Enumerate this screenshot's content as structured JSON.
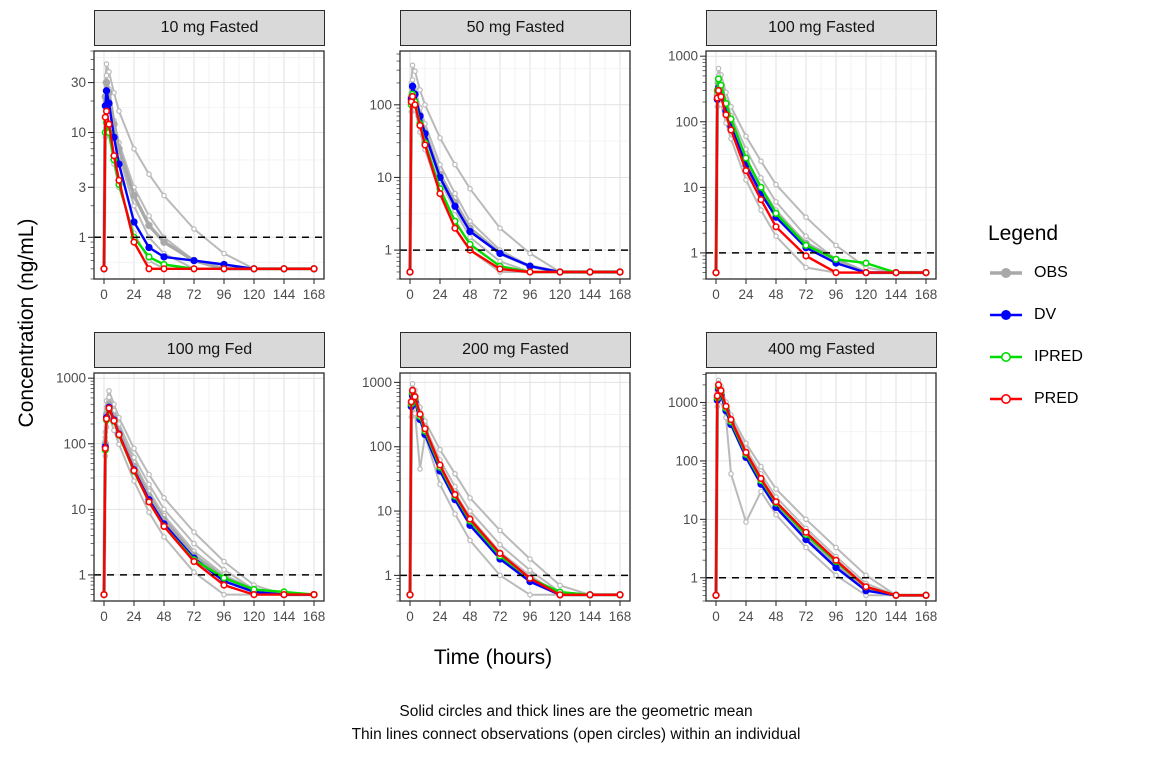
{
  "figure": {
    "y_axis_label": "Concentration (ng/mL)",
    "x_axis_label": "Time (hours)",
    "caption_line1": "Solid circles and thick lines are the geometric mean",
    "caption_line2": "Thin lines connect observations (open circles) within an individual",
    "legend": {
      "title": "Legend",
      "items": [
        {
          "label": "OBS",
          "color": "#a9a9a9",
          "solid": true
        },
        {
          "label": "DV",
          "color": "#0000ff",
          "solid": true
        },
        {
          "label": "IPRED",
          "color": "#00dd00",
          "solid": false
        },
        {
          "label": "PRED",
          "color": "#ff0000",
          "solid": false
        }
      ]
    }
  },
  "chart_data": {
    "type": "line",
    "xlabel": "Time (hours)",
    "ylabel": "Concentration (ng/mL)",
    "log_y": true,
    "grid": true,
    "legend_position": "right",
    "reference_line_y": 1,
    "x": [
      0,
      1,
      2,
      4,
      8,
      12,
      24,
      36,
      48,
      72,
      96,
      120,
      144,
      168
    ],
    "x_ticks": [
      0,
      24,
      48,
      72,
      96,
      120,
      144,
      168
    ],
    "xlim": [
      -8,
      176
    ],
    "series_colors": {
      "OBS": "#a9a9a9",
      "OBS_individual": "#bababa",
      "DV": "#0000ff",
      "IPRED": "#00dd00",
      "PRED": "#ff0000"
    },
    "facets": [
      {
        "title": "10 mg Fasted",
        "y_ticks": [
          1,
          3,
          10,
          30
        ],
        "ylim": [
          0.4,
          60
        ],
        "mean_series": {
          "OBS": [
            0.5,
            22,
            30,
            24,
            12,
            7,
            2.5,
            1.3,
            0.9,
            0.6,
            0.5,
            0.5,
            0.5,
            0.5
          ],
          "DV": [
            0.5,
            18,
            25,
            19,
            9,
            5,
            1.4,
            0.8,
            0.65,
            0.6,
            0.55,
            0.5,
            0.5,
            0.5
          ],
          "IPRED": [
            0.5,
            10,
            12.5,
            10,
            5.5,
            3.2,
            1.0,
            0.65,
            0.55,
            0.5,
            0.5,
            0.5,
            0.5,
            0.5
          ],
          "PRED": [
            0.5,
            14,
            16,
            12,
            6,
            3.5,
            0.9,
            0.5,
            0.5,
            0.5,
            0.5,
            0.5,
            0.5,
            0.5
          ]
        },
        "obs_individuals": [
          [
            0.5,
            30,
            45,
            38,
            24,
            16,
            7,
            4,
            2.5,
            1.2,
            0.7,
            0.5,
            0.5,
            0.5
          ],
          [
            0.5,
            20,
            28,
            20,
            10,
            6,
            2,
            1,
            0.7,
            0.5,
            0.5,
            0.5,
            0.5,
            0.5
          ],
          [
            0.5,
            9,
            12,
            9.5,
            5,
            3,
            1.1,
            0.6,
            0.5,
            0.5,
            0.5,
            0.5,
            0.5,
            0.5
          ],
          [
            0.5,
            25,
            35,
            26,
            13,
            8,
            3,
            1.6,
            1.0,
            0.6,
            0.5,
            0.5,
            0.5,
            0.5
          ]
        ]
      },
      {
        "title": "50 mg Fasted",
        "y_ticks": [
          1,
          10,
          100
        ],
        "ylim": [
          0.4,
          550
        ],
        "mean_series": {
          "OBS": [
            0.5,
            130,
            170,
            135,
            72,
            42,
            11,
            4.5,
            2,
            0.9,
            0.6,
            0.5,
            0.5,
            0.5
          ],
          "DV": [
            0.5,
            120,
            180,
            140,
            70,
            40,
            10,
            4,
            1.8,
            0.9,
            0.6,
            0.5,
            0.5,
            0.5
          ],
          "IPRED": [
            0.5,
            100,
            140,
            110,
            55,
            30,
            7,
            2.5,
            1.2,
            0.6,
            0.5,
            0.5,
            0.5,
            0.5
          ],
          "PRED": [
            0.5,
            110,
            130,
            100,
            52,
            28,
            6,
            2,
            1.0,
            0.55,
            0.5,
            0.5,
            0.5,
            0.5
          ]
        },
        "obs_individuals": [
          [
            0.5,
            200,
            350,
            290,
            160,
            100,
            35,
            15,
            7,
            2,
            0.9,
            0.5,
            0.5,
            0.5
          ],
          [
            0.5,
            150,
            220,
            170,
            90,
            55,
            15,
            6,
            2.5,
            1,
            0.6,
            0.5,
            0.5,
            0.5
          ],
          [
            0.5,
            80,
            110,
            85,
            42,
            24,
            6,
            2,
            1,
            0.5,
            0.5,
            0.5,
            0.5,
            0.5
          ],
          [
            0.5,
            120,
            160,
            125,
            65,
            38,
            9,
            3.5,
            1.5,
            0.7,
            0.5,
            0.5,
            0.5,
            0.5
          ]
        ]
      },
      {
        "title": "100 mg Fasted",
        "y_ticks": [
          1,
          10,
          100,
          1000
        ],
        "ylim": [
          0.4,
          1200
        ],
        "mean_series": {
          "OBS": [
            0.5,
            260,
            380,
            300,
            160,
            95,
            25,
            9,
            4,
            1.4,
            0.8,
            0.5,
            0.5,
            0.5
          ],
          "DV": [
            0.5,
            220,
            330,
            270,
            145,
            85,
            22,
            8,
            3.5,
            1.2,
            0.7,
            0.5,
            0.5,
            0.5
          ],
          "IPRED": [
            0.5,
            300,
            450,
            360,
            190,
            110,
            28,
            10,
            4,
            1.3,
            0.8,
            0.7,
            0.5,
            0.5
          ],
          "PRED": [
            0.5,
            230,
            300,
            240,
            128,
            75,
            18,
            6.5,
            2.5,
            0.9,
            0.5,
            0.5,
            0.5,
            0.5
          ]
        },
        "obs_individuals": [
          [
            0.5,
            400,
            650,
            520,
            280,
            170,
            60,
            25,
            11,
            3.5,
            1.3,
            0.6,
            0.5,
            0.5
          ],
          [
            0.5,
            280,
            420,
            330,
            175,
            105,
            28,
            10,
            4.5,
            1.4,
            0.7,
            0.5,
            0.5,
            0.5
          ],
          [
            0.5,
            170,
            240,
            185,
            95,
            55,
            13,
            4.5,
            1.8,
            0.6,
            0.5,
            0.5,
            0.5,
            0.5
          ],
          [
            0.5,
            320,
            500,
            395,
            210,
            125,
            38,
            14,
            6,
            1.8,
            0.8,
            0.5,
            0.5,
            0.5
          ]
        ]
      },
      {
        "title": "100 mg Fed",
        "y_ticks": [
          1,
          10,
          100,
          1000
        ],
        "ylim": [
          0.4,
          1200
        ],
        "mean_series": {
          "OBS": [
            0.5,
            100,
            280,
            400,
            250,
            155,
            45,
            16,
            7,
            2,
            0.9,
            0.6,
            0.5,
            0.5
          ],
          "DV": [
            0.5,
            90,
            250,
            360,
            230,
            140,
            40,
            14,
            6,
            1.8,
            0.8,
            0.55,
            0.5,
            0.5
          ],
          "IPRED": [
            0.5,
            80,
            230,
            340,
            220,
            135,
            38,
            13,
            5.5,
            1.7,
            0.9,
            0.6,
            0.55,
            0.5
          ],
          "PRED": [
            0.5,
            85,
            240,
            350,
            225,
            138,
            39,
            13,
            5.5,
            1.6,
            0.7,
            0.5,
            0.5,
            0.5
          ]
        },
        "obs_individuals": [
          [
            0.5,
            150,
            450,
            640,
            400,
            250,
            85,
            34,
            15,
            4.5,
            1.6,
            0.7,
            0.5,
            0.5
          ],
          [
            0.5,
            110,
            320,
            450,
            280,
            175,
            52,
            19,
            8,
            2.3,
            1,
            0.6,
            0.5,
            0.5
          ],
          [
            0.5,
            65,
            180,
            265,
            160,
            98,
            27,
            9,
            3.8,
            1.1,
            0.5,
            0.5,
            0.5,
            0.5
          ],
          [
            0.5,
            125,
            360,
            510,
            320,
            200,
            62,
            24,
            10,
            3,
            1.2,
            0.6,
            0.5,
            0.5
          ]
        ]
      },
      {
        "title": "200 mg Fasted",
        "y_ticks": [
          1,
          10,
          100,
          1000
        ],
        "ylim": [
          0.4,
          1400
        ],
        "mean_series": {
          "OBS": [
            0.5,
            440,
            650,
            520,
            280,
            165,
            45,
            16,
            6.5,
            2,
            0.85,
            0.5,
            0.5,
            0.5
          ],
          "DV": [
            0.5,
            420,
            620,
            500,
            265,
            155,
            42,
            15,
            6,
            1.8,
            0.8,
            0.5,
            0.5,
            0.5
          ],
          "IPRED": [
            0.5,
            460,
            680,
            550,
            295,
            175,
            48,
            17,
            7,
            2,
            0.9,
            0.55,
            0.5,
            0.5
          ],
          "PRED": [
            0.5,
            500,
            750,
            600,
            320,
            190,
            52,
            18,
            7.5,
            2.2,
            0.9,
            0.5,
            0.5,
            0.5
          ]
        },
        "obs_individuals": [
          [
            0.5,
            650,
            950,
            760,
            410,
            250,
            90,
            38,
            16,
            5,
            1.8,
            0.7,
            0.5,
            0.5
          ],
          [
            0.5,
            480,
            700,
            560,
            300,
            180,
            52,
            19,
            8,
            2.3,
            1,
            0.5,
            0.5,
            0.5
          ],
          [
            0.5,
            290,
            420,
            330,
            45,
            150,
            26,
            9,
            3.5,
            1,
            0.5,
            0.5,
            0.5,
            0.5
          ],
          [
            0.5,
            540,
            800,
            640,
            345,
            205,
            62,
            24,
            10,
            3,
            1.2,
            0.55,
            0.5,
            0.5
          ]
        ]
      },
      {
        "title": "400 mg Fasted",
        "y_ticks": [
          1,
          10,
          100,
          1000
        ],
        "ylim": [
          0.4,
          3200
        ],
        "mean_series": {
          "OBS": [
            0.5,
            1150,
            1750,
            1400,
            750,
            440,
            120,
            43,
            17,
            5,
            1.7,
            0.65,
            0.5,
            0.5
          ],
          "DV": [
            0.5,
            1100,
            1700,
            1350,
            720,
            420,
            115,
            40,
            16,
            4.5,
            1.5,
            0.6,
            0.5,
            0.5
          ],
          "IPRED": [
            0.5,
            1200,
            1850,
            1500,
            800,
            470,
            130,
            46,
            19,
            5.5,
            1.9,
            0.7,
            0.5,
            0.5
          ],
          "PRED": [
            0.5,
            1300,
            2000,
            1600,
            860,
            510,
            140,
            50,
            20,
            6,
            2,
            0.7,
            0.5,
            0.5
          ]
        },
        "obs_individuals": [
          [
            0.5,
            1600,
            2400,
            1900,
            1020,
            610,
            200,
            80,
            33,
            10,
            3.3,
            1.1,
            0.5,
            0.5
          ],
          [
            0.5,
            1250,
            1900,
            1510,
            810,
            480,
            135,
            48,
            19,
            5.5,
            1.8,
            0.65,
            0.5,
            0.5
          ],
          [
            0.5,
            850,
            1300,
            1030,
            550,
            60,
            9,
            30,
            12,
            3.3,
            1.1,
            0.5,
            0.5,
            0.5
          ],
          [
            0.5,
            1420,
            2150,
            1700,
            910,
            540,
            160,
            60,
            24,
            7,
            2.3,
            0.8,
            0.5,
            0.5
          ]
        ]
      }
    ]
  }
}
